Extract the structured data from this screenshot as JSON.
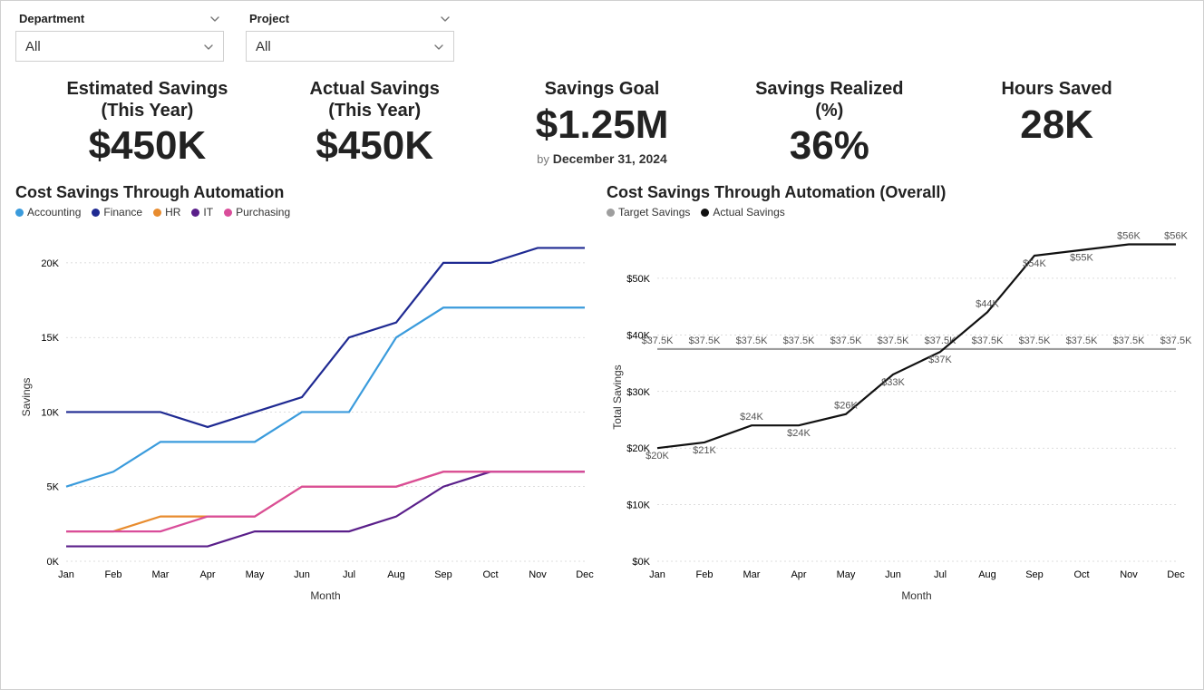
{
  "filters": {
    "department": {
      "label": "Department",
      "value": "All"
    },
    "project": {
      "label": "Project",
      "value": "All"
    }
  },
  "kpis": [
    {
      "key": "est",
      "title": "Estimated Savings",
      "subtitle": "(This Year)",
      "value": "$450K"
    },
    {
      "key": "act",
      "title": "Actual Savings",
      "subtitle": "(This Year)",
      "value": "$450K"
    },
    {
      "key": "goal",
      "title": "Savings Goal",
      "subtitle": "",
      "value": "$1.25M",
      "footer_prefix": "by",
      "footer": "December 31, 2024"
    },
    {
      "key": "pct",
      "title": "Savings Realized",
      "subtitle": "(%)",
      "value": "36%"
    },
    {
      "key": "hours",
      "title": "Hours Saved",
      "subtitle": "",
      "value": "28K"
    }
  ],
  "chart_left": {
    "type": "line",
    "title": "Cost Savings Through Automation",
    "xlabel": "Month",
    "ylabel": "Savings",
    "categories": [
      "Jan",
      "Feb",
      "Mar",
      "Apr",
      "May",
      "Jun",
      "Jul",
      "Aug",
      "Sep",
      "Oct",
      "Nov",
      "Dec"
    ],
    "y_ticks": [
      0,
      5,
      10,
      15,
      20
    ],
    "y_tick_suffix": "K",
    "ylim": [
      0,
      22
    ],
    "series": [
      {
        "name": "Accounting",
        "color": "#3a9bdc",
        "values": [
          5,
          6,
          8,
          8,
          8,
          10,
          10,
          15,
          17,
          17,
          17,
          17
        ]
      },
      {
        "name": "Finance",
        "color": "#1f2a92",
        "values": [
          10,
          10,
          10,
          9,
          10,
          11,
          15,
          16,
          20,
          20,
          21,
          21
        ]
      },
      {
        "name": "HR",
        "color": "#e88c2f",
        "values": [
          2,
          2,
          3,
          3,
          3,
          5,
          5,
          5,
          6,
          6,
          6,
          6
        ]
      },
      {
        "name": "IT",
        "color": "#5a1f8a",
        "values": [
          1,
          1,
          1,
          1,
          2,
          2,
          2,
          3,
          5,
          6,
          6,
          6
        ]
      },
      {
        "name": "Purchasing",
        "color": "#d94d9a",
        "values": [
          2,
          2,
          2,
          3,
          3,
          5,
          5,
          5,
          6,
          6,
          6,
          6
        ]
      }
    ],
    "grid_color": "#bbbbbb",
    "background": "#ffffff",
    "line_width": 2.2
  },
  "chart_right": {
    "type": "line",
    "title": "Cost Savings Through Automation (Overall)",
    "xlabel": "Month",
    "ylabel": "Total Savings",
    "categories": [
      "Jan",
      "Feb",
      "Mar",
      "Apr",
      "May",
      "Jun",
      "Jul",
      "Aug",
      "Sep",
      "Oct",
      "Nov",
      "Dec"
    ],
    "y_ticks": [
      0,
      10,
      20,
      30,
      40,
      50
    ],
    "y_tick_prefix": "$",
    "y_tick_suffix": "K",
    "ylim": [
      0,
      58
    ],
    "series": [
      {
        "name": "Target Savings",
        "color": "#9e9e9e",
        "values": [
          37.5,
          37.5,
          37.5,
          37.5,
          37.5,
          37.5,
          37.5,
          37.5,
          37.5,
          37.5,
          37.5,
          37.5
        ],
        "labels": [
          "$37.5K",
          "$37.5K",
          "$37.5K",
          "$37.5K",
          "$37.5K",
          "$37.5K",
          "$37.5K",
          "$37.5K",
          "$37.5K",
          "$37.5K",
          "$37.5K",
          "$37.5K"
        ],
        "label_dy": -6
      },
      {
        "name": "Actual Savings",
        "color": "#111111",
        "values": [
          20,
          21,
          24,
          24,
          26,
          33,
          37,
          44,
          54,
          55,
          56,
          56
        ],
        "labels": [
          "$20K",
          "$21K",
          "$24K",
          "$24K",
          "$26K",
          "$33K",
          "$37K",
          "$44K",
          "$54K",
          "$55K",
          "$56K",
          "$56K"
        ],
        "label_offsets": [
          12,
          12,
          -6,
          12,
          -6,
          12,
          12,
          -6,
          12,
          12,
          -6,
          -6
        ]
      }
    ],
    "grid_color": "#bbbbbb",
    "background": "#ffffff",
    "line_width": 2.5
  }
}
